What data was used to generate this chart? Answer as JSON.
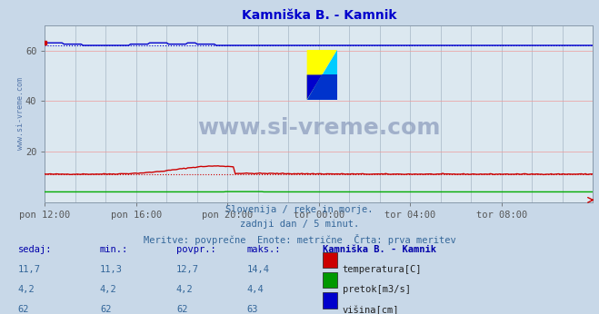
{
  "title": "Kamniška B. - Kamnik",
  "title_color": "#0000cc",
  "bg_color": "#c8d8e8",
  "plot_bg_color": "#dce8f0",
  "grid_color_h": "#ee9999",
  "grid_color_v": "#99aabb",
  "x_labels": [
    "pon 12:00",
    "pon 16:00",
    "pon 20:00",
    "tor 00:00",
    "tor 04:00",
    "tor 08:00"
  ],
  "x_ticks": [
    0,
    48,
    96,
    144,
    192,
    240
  ],
  "x_max": 288,
  "y_min": 0,
  "y_max": 70,
  "y_ticks": [
    20,
    40,
    60
  ],
  "temp_color": "#cc0000",
  "pretok_color": "#00aa00",
  "visina_color": "#0000cc",
  "footer_line1": "Slovenija / reke in morje.",
  "footer_line2": "zadnji dan / 5 minut.",
  "footer_line3": "Meritve: povprečne  Enote: metrične  Črta: prva meritev",
  "table_headers": [
    "sedaj:",
    "min.:",
    "povpr.:",
    "maks.:",
    "Kamniška B. - Kamnik"
  ],
  "watermark": "www.si-vreme.com",
  "ylabel_text": "www.si-vreme.com",
  "rows": [
    [
      "11,7",
      "11,3",
      "12,7",
      "14,4",
      "#cc0000",
      "temperatura[C]"
    ],
    [
      "4,2",
      "4,2",
      "4,2",
      "4,4",
      "#009900",
      "pretok[m3/s]"
    ],
    [
      "62",
      "62",
      "62",
      "63",
      "#0000cc",
      "višina[cm]"
    ]
  ]
}
